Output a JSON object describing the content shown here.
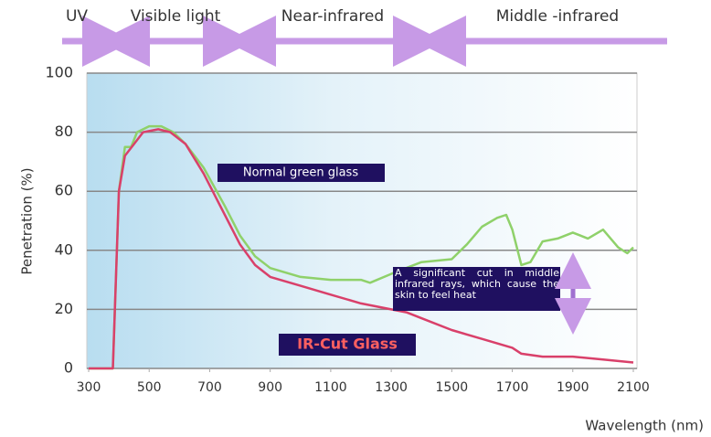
{
  "chart_data": {
    "type": "line",
    "bands": [
      "UV",
      "Visible light",
      "Near-infrared",
      "Middle -infrared"
    ],
    "ylabel": "Penetration (%)",
    "xlabel": "Wavelength (nm)",
    "annotations": [
      "Normal green glass",
      "IR-Cut Glass",
      "A significant cut in middle infrared rays, which cause the skin to feel heat"
    ],
    "xlim": [
      300,
      2100
    ],
    "ylim": [
      0,
      100
    ],
    "xticks": [
      300,
      500,
      700,
      900,
      1100,
      1300,
      1500,
      1700,
      1900,
      2100
    ],
    "yticks": [
      0,
      20,
      40,
      60,
      80,
      100
    ],
    "grid": true,
    "series": [
      {
        "name": "Normal green glass",
        "color": "#8fd16a",
        "x": [
          300,
          380,
          390,
          400,
          420,
          440,
          460,
          500,
          540,
          580,
          620,
          680,
          750,
          800,
          850,
          900,
          1000,
          1100,
          1200,
          1230,
          1300,
          1400,
          1500,
          1550,
          1600,
          1650,
          1680,
          1700,
          1730,
          1760,
          1800,
          1850,
          1900,
          1950,
          2000,
          2050,
          2080,
          2100
        ],
        "values": [
          0,
          0,
          30,
          60,
          75,
          75,
          80,
          82,
          82,
          80,
          76,
          68,
          55,
          45,
          38,
          34,
          31,
          30,
          30,
          29,
          32,
          36,
          37,
          42,
          48,
          51,
          52,
          47,
          35,
          36,
          43,
          44,
          46,
          44,
          47,
          41,
          39,
          41
        ]
      },
      {
        "name": "IR-Cut Glass",
        "color": "#d9406a",
        "x": [
          300,
          380,
          390,
          400,
          420,
          450,
          480,
          530,
          570,
          620,
          680,
          750,
          800,
          850,
          900,
          1000,
          1100,
          1200,
          1300,
          1350,
          1400,
          1500,
          1600,
          1700,
          1730,
          1800,
          1900,
          2000,
          2100
        ],
        "values": [
          0,
          0,
          30,
          60,
          72,
          76,
          80,
          81,
          80,
          76,
          66,
          52,
          42,
          35,
          31,
          28,
          25,
          22,
          20,
          19,
          17,
          13,
          10,
          7,
          5,
          4,
          4,
          3,
          2
        ]
      }
    ]
  }
}
